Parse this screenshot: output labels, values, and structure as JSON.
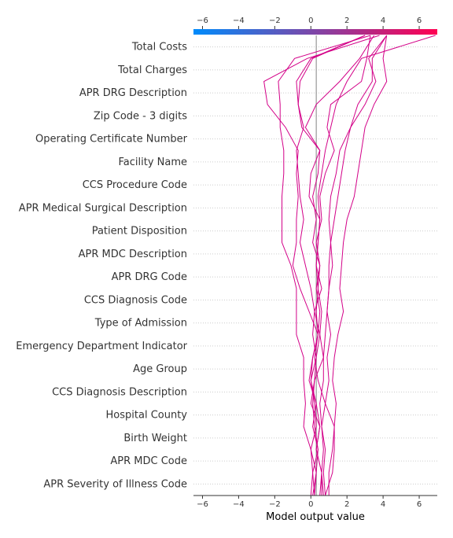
{
  "chart_data": {
    "type": "line",
    "xlabel": "Model output value",
    "xlim": [
      -6.5,
      7.0
    ],
    "x_ticks": [
      -6,
      -4,
      -2,
      0,
      2,
      4,
      6
    ],
    "x_tick_labels": [
      "−6",
      "−4",
      "−2",
      "0",
      "2",
      "4",
      "6"
    ],
    "base_value": 0.3,
    "colormap": [
      "#008bfb",
      "#ff0052"
    ],
    "line_color": "#d30088",
    "features": [
      "Total Costs",
      "Total Charges",
      "APR DRG Description",
      "Zip Code - 3 digits",
      "Operating Certificate Number",
      "Facility Name",
      "CCS Procedure Code",
      "APR Medical Surgical Description",
      "Patient Disposition",
      "APR MDC Description",
      "APR DRG Code",
      "CCS Diagnosis Code",
      "Type of Admission",
      "Emergency Department Indicator",
      "Age Group",
      "CCS Diagnosis Description",
      "Hospital County",
      "Birth Weight",
      "APR MDC Code",
      "APR Severity of Illness Code"
    ],
    "series": [
      {
        "values": [
          6.9,
          2.8,
          2.0,
          1.4,
          1.1,
          0.8,
          0.6,
          0.4,
          0.5,
          0.4,
          0.3,
          0.4,
          0.3,
          0.4,
          0.2,
          0.4,
          0.8,
          0.6,
          0.8,
          0.7,
          0.8
        ]
      },
      {
        "values": [
          4.2,
          3.2,
          3.6,
          3.0,
          2.2,
          1.9,
          1.7,
          1.5,
          1.3,
          1.1,
          1.0,
          1.0,
          0.9,
          0.8,
          0.7,
          0.7,
          0.5,
          0.6,
          0.7,
          0.6,
          0.6
        ]
      },
      {
        "values": [
          4.2,
          4.0,
          4.2,
          3.5,
          3.0,
          2.8,
          2.6,
          2.4,
          2.0,
          1.8,
          1.7,
          1.6,
          1.8,
          1.5,
          1.3,
          1.2,
          1.4,
          1.3,
          1.2,
          1.0,
          1.0
        ]
      },
      {
        "values": [
          4.2,
          3.4,
          3.4,
          2.6,
          2.2,
          1.6,
          1.4,
          1.1,
          1.0,
          1.1,
          1.2,
          1.0,
          0.9,
          1.1,
          0.9,
          1.0,
          0.8,
          1.3,
          1.3,
          1.2,
          0.8
        ]
      },
      {
        "values": [
          3.3,
          3.1,
          2.8,
          1.1,
          0.9,
          1.3,
          0.8,
          0.5,
          0.6,
          0.3,
          0.5,
          0.3,
          0.5,
          0.4,
          0.1,
          -0.1,
          0.3,
          0.1,
          0.4,
          0.1,
          0.0
        ]
      },
      {
        "values": [
          3.5,
          2.7,
          1.6,
          0.3,
          -0.3,
          0.5,
          0.4,
          0.1,
          0.3,
          0.1,
          0.5,
          0.4,
          0.6,
          0.5,
          0.3,
          0.2,
          0.1,
          0.2,
          0.4,
          0.3,
          0.2
        ]
      },
      {
        "values": [
          3.0,
          0.0,
          -0.8,
          -0.7,
          -0.4,
          -0.8,
          -0.7,
          -0.6,
          -0.4,
          -0.6,
          -0.3,
          0.0,
          0.2,
          0.1,
          0.3,
          0.0,
          0.2,
          0.3,
          0.0,
          0.3,
          0.1
        ]
      },
      {
        "values": [
          3.3,
          -0.9,
          -1.8,
          -1.7,
          -1.7,
          -1.5,
          -1.5,
          -1.6,
          -1.6,
          -1.6,
          -1.1,
          -0.8,
          -0.8,
          -0.8,
          -0.4,
          -0.4,
          -0.3,
          -0.4,
          0.0,
          0.1,
          0.2
        ]
      },
      {
        "values": [
          3.8,
          -0.2,
          -2.6,
          -2.4,
          -1.4,
          -0.7,
          -0.8,
          -0.7,
          -0.8,
          -0.8,
          -1.0,
          -0.6,
          -0.1,
          0.4,
          0.1,
          0.0,
          0.3,
          0.5,
          0.3,
          0.6,
          0.7
        ]
      },
      {
        "values": [
          3.0,
          0.1,
          -0.6,
          -0.7,
          -0.5,
          0.5,
          0.0,
          -0.1,
          0.5,
          0.4,
          0.3,
          0.6,
          0.2,
          0.5,
          0.7,
          0.2,
          0.0,
          0.5,
          0.3,
          0.6,
          0.5
        ]
      }
    ]
  }
}
